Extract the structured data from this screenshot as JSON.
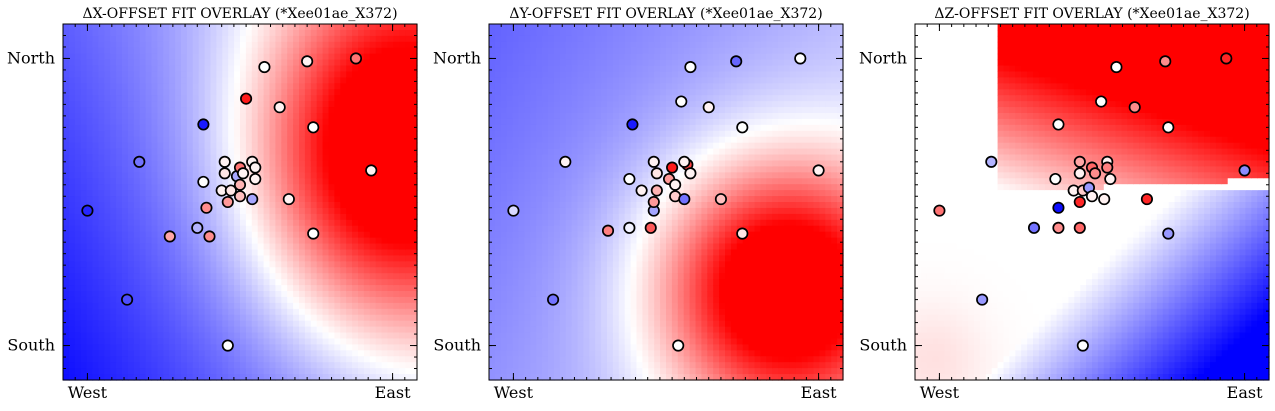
{
  "figure": {
    "colormap": "bwr",
    "colors": {
      "low": "#0000ff",
      "mid": "#ffffff",
      "high": "#ff0000",
      "marker_edge": "#000000"
    }
  },
  "chart_data": [
    {
      "type": "scatter",
      "title": "ΔX-OFFSET FIT OVERLAY (*Xee01ae_X372)",
      "xlabel": "",
      "ylabel": "",
      "xlim": [
        -0.08,
        1.08
      ],
      "ylim": [
        -0.12,
        1.12
      ],
      "xticks": [
        {
          "v": 0,
          "label": "West"
        },
        {
          "v": 1,
          "label": "East"
        }
      ],
      "yticks": [
        {
          "v": 0,
          "label": "South"
        },
        {
          "v": 1,
          "label": "North"
        }
      ],
      "field": {
        "kind": "blob",
        "cx": 1.0,
        "cy": 0.66,
        "sx": 0.48,
        "sy": 0.62,
        "bg_x": -0.55,
        "bg_y": 0.25,
        "bg_c": 0.05
      },
      "points": [
        {
          "x": 0.0,
          "y": 0.47,
          "v": -0.85
        },
        {
          "x": 0.17,
          "y": 0.64,
          "v": -0.55
        },
        {
          "x": 0.13,
          "y": 0.16,
          "v": -0.7
        },
        {
          "x": 0.27,
          "y": 0.38,
          "v": 0.35
        },
        {
          "x": 0.36,
          "y": 0.41,
          "v": -0.3
        },
        {
          "x": 0.4,
          "y": 0.38,
          "v": 0.45
        },
        {
          "x": 0.46,
          "y": 0.0,
          "v": 0.0
        },
        {
          "x": 0.38,
          "y": 0.57,
          "v": 0.0
        },
        {
          "x": 0.39,
          "y": 0.48,
          "v": 0.45
        },
        {
          "x": 0.44,
          "y": 0.54,
          "v": 0.05
        },
        {
          "x": 0.45,
          "y": 0.64,
          "v": 0.05
        },
        {
          "x": 0.45,
          "y": 0.6,
          "v": 0.1
        },
        {
          "x": 0.46,
          "y": 0.5,
          "v": 0.4
        },
        {
          "x": 0.47,
          "y": 0.54,
          "v": 0.1
        },
        {
          "x": 0.49,
          "y": 0.59,
          "v": -0.35
        },
        {
          "x": 0.5,
          "y": 0.62,
          "v": 0.55
        },
        {
          "x": 0.51,
          "y": 0.6,
          "v": 0.05
        },
        {
          "x": 0.5,
          "y": 0.56,
          "v": 0.3
        },
        {
          "x": 0.5,
          "y": 0.52,
          "v": 0.25
        },
        {
          "x": 0.52,
          "y": 0.86,
          "v": 0.9
        },
        {
          "x": 0.54,
          "y": 0.64,
          "v": 0.05
        },
        {
          "x": 0.55,
          "y": 0.62,
          "v": 0.05
        },
        {
          "x": 0.55,
          "y": 0.58,
          "v": 0.05
        },
        {
          "x": 0.54,
          "y": 0.51,
          "v": -0.35
        },
        {
          "x": 0.38,
          "y": 0.77,
          "v": -0.9
        },
        {
          "x": 0.58,
          "y": 0.97,
          "v": 0.0
        },
        {
          "x": 0.63,
          "y": 0.83,
          "v": 0.05
        },
        {
          "x": 0.66,
          "y": 0.51,
          "v": 0.05
        },
        {
          "x": 0.74,
          "y": 0.76,
          "v": 0.0
        },
        {
          "x": 0.74,
          "y": 0.39,
          "v": 0.0
        },
        {
          "x": 0.72,
          "y": 0.99,
          "v": 0.05
        },
        {
          "x": 0.88,
          "y": 1.0,
          "v": 0.55
        },
        {
          "x": 0.93,
          "y": 0.61,
          "v": 0.05
        }
      ]
    },
    {
      "type": "scatter",
      "title": "ΔY-OFFSET FIT OVERLAY (*Xee01ae_X372)",
      "xlabel": "",
      "ylabel": "",
      "xlim": [
        -0.08,
        1.08
      ],
      "ylim": [
        -0.12,
        1.12
      ],
      "xticks": [
        {
          "v": 0,
          "label": "West"
        },
        {
          "v": 1,
          "label": "East"
        }
      ],
      "yticks": [
        {
          "v": 0,
          "label": "South"
        },
        {
          "v": 1,
          "label": "North"
        }
      ],
      "field": {
        "kind": "blob",
        "cx": 0.88,
        "cy": 0.2,
        "sx": 0.42,
        "sy": 0.45,
        "bg_x": -0.3,
        "bg_y": -0.15,
        "bg_c": 0.05
      },
      "points": [
        {
          "x": 0.0,
          "y": 0.47,
          "v": -0.15
        },
        {
          "x": 0.17,
          "y": 0.64,
          "v": 0.05
        },
        {
          "x": 0.13,
          "y": 0.16,
          "v": -0.55
        },
        {
          "x": 0.31,
          "y": 0.4,
          "v": 0.5
        },
        {
          "x": 0.38,
          "y": 0.41,
          "v": -0.05
        },
        {
          "x": 0.45,
          "y": 0.41,
          "v": 0.65
        },
        {
          "x": 0.54,
          "y": 0.0,
          "v": 0.0
        },
        {
          "x": 0.38,
          "y": 0.58,
          "v": 0.0
        },
        {
          "x": 0.46,
          "y": 0.47,
          "v": -0.35
        },
        {
          "x": 0.42,
          "y": 0.54,
          "v": 0.05
        },
        {
          "x": 0.46,
          "y": 0.64,
          "v": 0.05
        },
        {
          "x": 0.47,
          "y": 0.6,
          "v": 0.1
        },
        {
          "x": 0.46,
          "y": 0.5,
          "v": 0.4
        },
        {
          "x": 0.47,
          "y": 0.54,
          "v": 0.3
        },
        {
          "x": 0.51,
          "y": 0.58,
          "v": 0.4
        },
        {
          "x": 0.52,
          "y": 0.62,
          "v": 0.9
        },
        {
          "x": 0.57,
          "y": 0.63,
          "v": 0.75
        },
        {
          "x": 0.53,
          "y": 0.56,
          "v": 0.05
        },
        {
          "x": 0.53,
          "y": 0.52,
          "v": 0.2
        },
        {
          "x": 0.55,
          "y": 0.85,
          "v": 0.0
        },
        {
          "x": 0.56,
          "y": 0.64,
          "v": 0.05
        },
        {
          "x": 0.58,
          "y": 0.6,
          "v": 0.05
        },
        {
          "x": 0.56,
          "y": 0.51,
          "v": -0.55
        },
        {
          "x": 0.39,
          "y": 0.77,
          "v": -0.9
        },
        {
          "x": 0.58,
          "y": 0.97,
          "v": 0.0
        },
        {
          "x": 0.64,
          "y": 0.83,
          "v": 0.05
        },
        {
          "x": 0.68,
          "y": 0.51,
          "v": 0.25
        },
        {
          "x": 0.75,
          "y": 0.76,
          "v": 0.0
        },
        {
          "x": 0.75,
          "y": 0.39,
          "v": 0.1
        },
        {
          "x": 0.73,
          "y": 0.99,
          "v": -0.6
        },
        {
          "x": 0.94,
          "y": 1.0,
          "v": 0.0
        },
        {
          "x": 1.0,
          "y": 0.61,
          "v": 0.05
        }
      ]
    },
    {
      "type": "scatter",
      "title": "ΔZ-OFFSET FIT OVERLAY (*Xee01ae_X372)",
      "xlabel": "",
      "ylabel": "",
      "xlim": [
        -0.08,
        1.08
      ],
      "ylim": [
        -0.12,
        1.12
      ],
      "xticks": [
        {
          "v": 0,
          "label": "West"
        },
        {
          "v": 1,
          "label": "East"
        }
      ],
      "yticks": [
        {
          "v": 0,
          "label": "South"
        },
        {
          "v": 1,
          "label": "North"
        }
      ],
      "field": {
        "kind": "zlayer"
      },
      "points": [
        {
          "x": 0.0,
          "y": 0.47,
          "v": 0.55
        },
        {
          "x": 0.17,
          "y": 0.64,
          "v": -0.3
        },
        {
          "x": 0.14,
          "y": 0.16,
          "v": -0.4
        },
        {
          "x": 0.31,
          "y": 0.41,
          "v": -0.55
        },
        {
          "x": 0.39,
          "y": 0.41,
          "v": 0.45
        },
        {
          "x": 0.46,
          "y": 0.41,
          "v": 0.6
        },
        {
          "x": 0.47,
          "y": 0.0,
          "v": 0.0
        },
        {
          "x": 0.38,
          "y": 0.58,
          "v": 0.0
        },
        {
          "x": 0.39,
          "y": 0.48,
          "v": -0.95
        },
        {
          "x": 0.44,
          "y": 0.54,
          "v": 0.05
        },
        {
          "x": 0.46,
          "y": 0.64,
          "v": 0.35
        },
        {
          "x": 0.46,
          "y": 0.6,
          "v": 0.05
        },
        {
          "x": 0.46,
          "y": 0.5,
          "v": 0.85
        },
        {
          "x": 0.47,
          "y": 0.54,
          "v": 0.2
        },
        {
          "x": 0.49,
          "y": 0.55,
          "v": -0.4
        },
        {
          "x": 0.5,
          "y": 0.62,
          "v": 0.6
        },
        {
          "x": 0.51,
          "y": 0.6,
          "v": 0.45
        },
        {
          "x": 0.5,
          "y": 0.52,
          "v": 0.05
        },
        {
          "x": 0.53,
          "y": 0.85,
          "v": 0.0
        },
        {
          "x": 0.55,
          "y": 0.64,
          "v": 0.05
        },
        {
          "x": 0.55,
          "y": 0.62,
          "v": 0.5
        },
        {
          "x": 0.56,
          "y": 0.58,
          "v": 0.05
        },
        {
          "x": 0.54,
          "y": 0.51,
          "v": 0.05
        },
        {
          "x": 0.39,
          "y": 0.77,
          "v": 0.0
        },
        {
          "x": 0.58,
          "y": 0.97,
          "v": 0.0
        },
        {
          "x": 0.64,
          "y": 0.83,
          "v": 0.45
        },
        {
          "x": 0.68,
          "y": 0.51,
          "v": 0.85
        },
        {
          "x": 0.75,
          "y": 0.76,
          "v": 0.0
        },
        {
          "x": 0.75,
          "y": 0.39,
          "v": -0.4
        },
        {
          "x": 0.74,
          "y": 0.99,
          "v": 0.45
        },
        {
          "x": 0.94,
          "y": 1.0,
          "v": 0.85
        },
        {
          "x": 1.0,
          "y": 0.61,
          "v": -0.45
        }
      ]
    }
  ]
}
